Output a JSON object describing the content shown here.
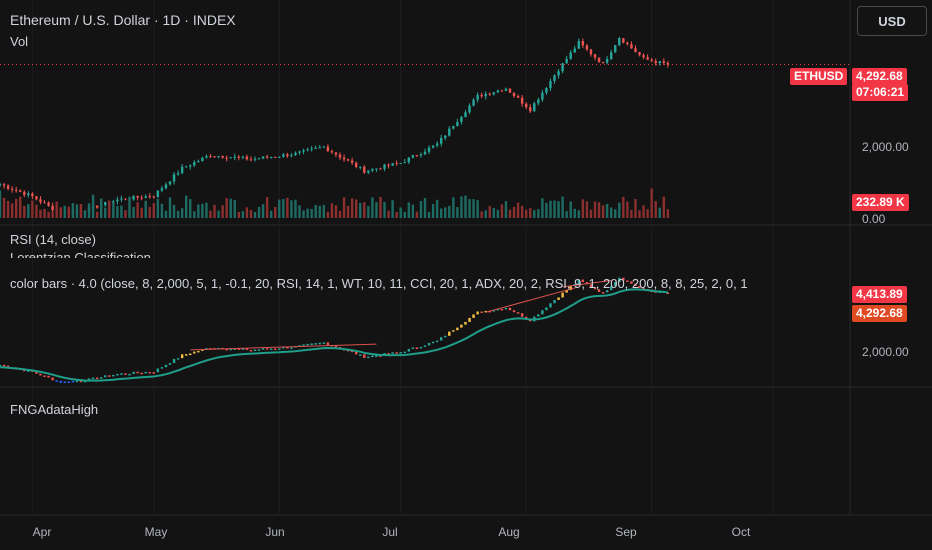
{
  "header": {
    "title": "Ethereum / U.S. Dollar · 1D · INDEX",
    "vol_label": "Vol",
    "currency_button": "USD"
  },
  "main_pane": {
    "symbol_badge": "ETHUSD",
    "last_price": "4,292.68",
    "countdown": "07:06:21",
    "axis_label": "2,000.00",
    "volume_badge": "232.89 K",
    "volume_axis_zero": "0.00"
  },
  "rsi_pane": {
    "title": "RSI (14, close)",
    "subtitle": "Lorentzian Classification"
  },
  "colorbars_pane": {
    "title": "color bars · 4.0 (close, 8, 2,000, 5, 1, -0.1, 20, RSI, 14, 1, WT, 10, 11, CCI, 20, 1, ADX, 20, 2, RSI, 9, 1, 200, 200, 8, 8, 25, 2, 0, 1",
    "badge_upper": "4,413.89",
    "badge_lower": "4,292.68",
    "axis_label": "2,000.00"
  },
  "fng_pane": {
    "title": "FNGAdataHigh"
  },
  "time_axis": {
    "months": [
      "Apr",
      "May",
      "Jun",
      "Jul",
      "Aug",
      "Sep",
      "Oct"
    ]
  },
  "colors": {
    "up": "#26a69a",
    "down": "#ef5350",
    "yellow": "#f6c343",
    "blue": "#2962ff",
    "badge_red": "#f23645",
    "badge_orange": "#e04a22",
    "kernel": "#1f9e89"
  },
  "chart_data": {
    "type": "candlestick",
    "x_range": [
      "2025-03-24",
      "2025-10-20"
    ],
    "y_range_price": [
      1100,
      5500
    ],
    "close_points": [
      {
        "date": "2025-03-24",
        "close": 2050
      },
      {
        "date": "2025-04-01",
        "close": 1820
      },
      {
        "date": "2025-04-08",
        "close": 1500
      },
      {
        "date": "2025-04-15",
        "close": 1590
      },
      {
        "date": "2025-04-22",
        "close": 1760
      },
      {
        "date": "2025-05-01",
        "close": 1840
      },
      {
        "date": "2025-05-08",
        "close": 2350
      },
      {
        "date": "2025-05-15",
        "close": 2600
      },
      {
        "date": "2025-05-25",
        "close": 2520
      },
      {
        "date": "2025-06-05",
        "close": 2620
      },
      {
        "date": "2025-06-12",
        "close": 2750
      },
      {
        "date": "2025-06-22",
        "close": 2300
      },
      {
        "date": "2025-07-01",
        "close": 2450
      },
      {
        "date": "2025-07-10",
        "close": 2800
      },
      {
        "date": "2025-07-20",
        "close": 3700
      },
      {
        "date": "2025-07-27",
        "close": 3850
      },
      {
        "date": "2025-08-02",
        "close": 3450
      },
      {
        "date": "2025-08-09",
        "close": 4200
      },
      {
        "date": "2025-08-14",
        "close": 4700
      },
      {
        "date": "2025-08-20",
        "close": 4300
      },
      {
        "date": "2025-08-24",
        "close": 4800
      },
      {
        "date": "2025-08-30",
        "close": 4400
      },
      {
        "date": "2025-09-05",
        "close": 4290
      }
    ],
    "volume_max": 480,
    "last_volume_k": 232.89
  }
}
